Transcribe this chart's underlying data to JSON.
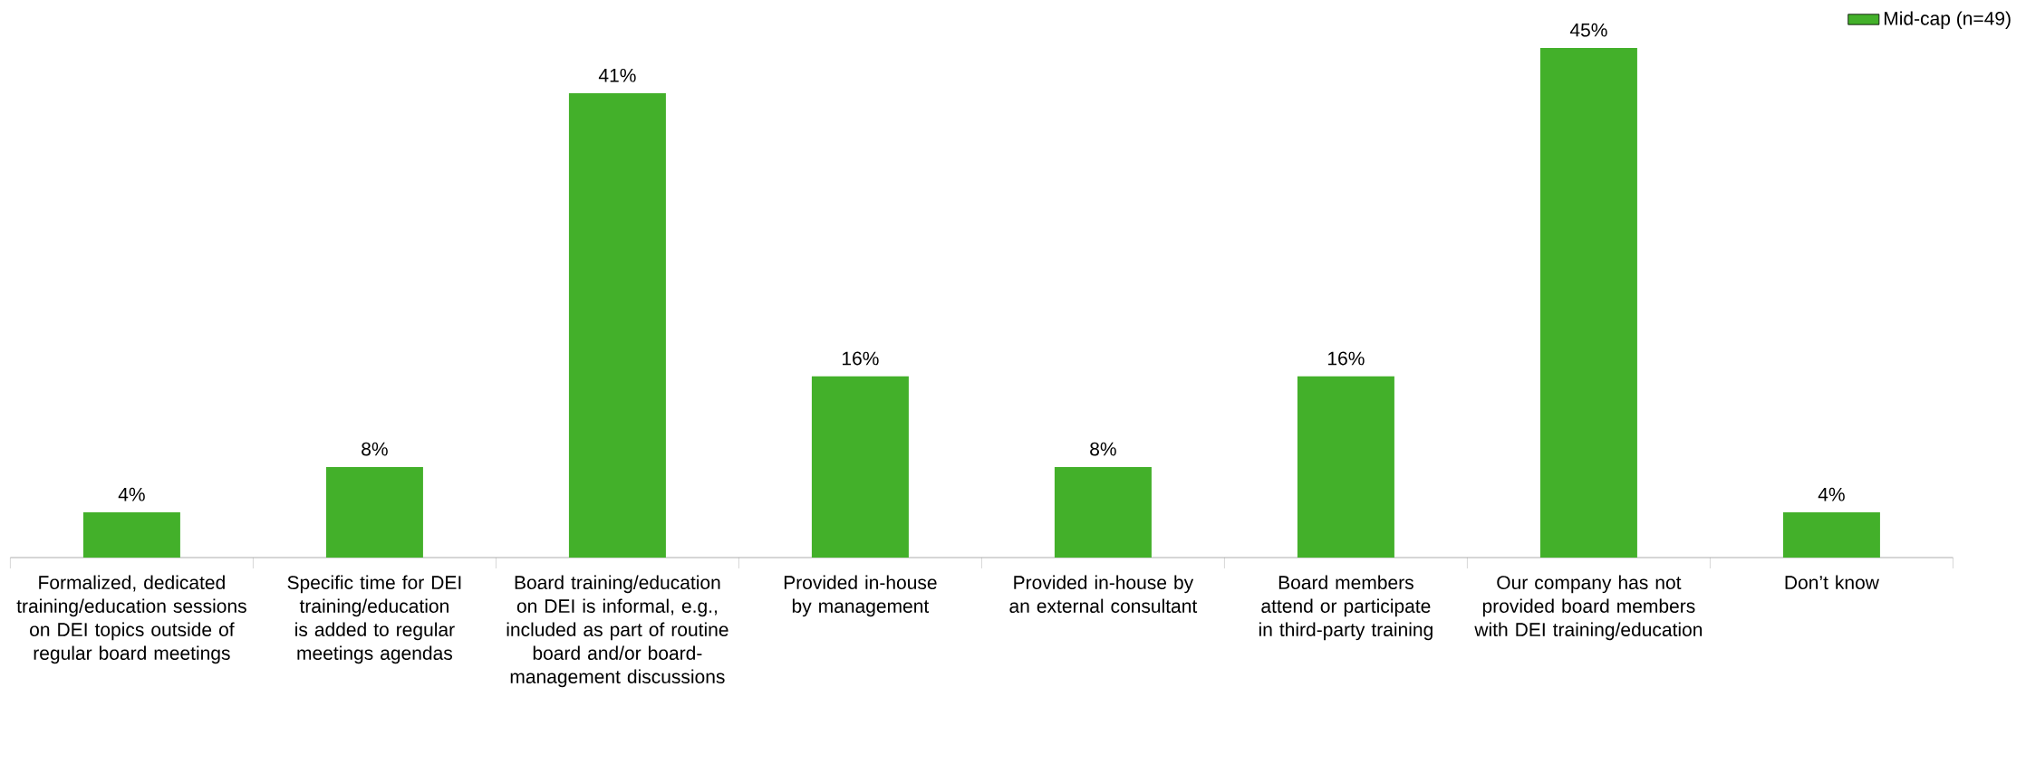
{
  "chart_data": {
    "type": "bar",
    "categories": [
      "Formalized, dedicated training/education sessions on DEI topics outside of regular board meetings",
      "Specific time for DEI training/education is added to regular meetings agendas",
      "Board training/education on DEI is informal, e.g., included as part of routine board and/or board-management discussions",
      "Provided in-house by management",
      "Provided in-house by an external consultant",
      "Board members attend or participate in third-party training",
      "Our company has not provided board members with DEI training/education",
      "Don’t know"
    ],
    "series": [
      {
        "name": "Mid-cap (n=49)",
        "color": "#43b02a",
        "values": [
          4,
          8,
          41,
          16,
          8,
          16,
          45,
          4
        ],
        "value_labels": [
          "4%",
          "8%",
          "41%",
          "16%",
          "8%",
          "16%",
          "45%",
          "4%"
        ]
      }
    ],
    "legend": "top right"
  }
}
